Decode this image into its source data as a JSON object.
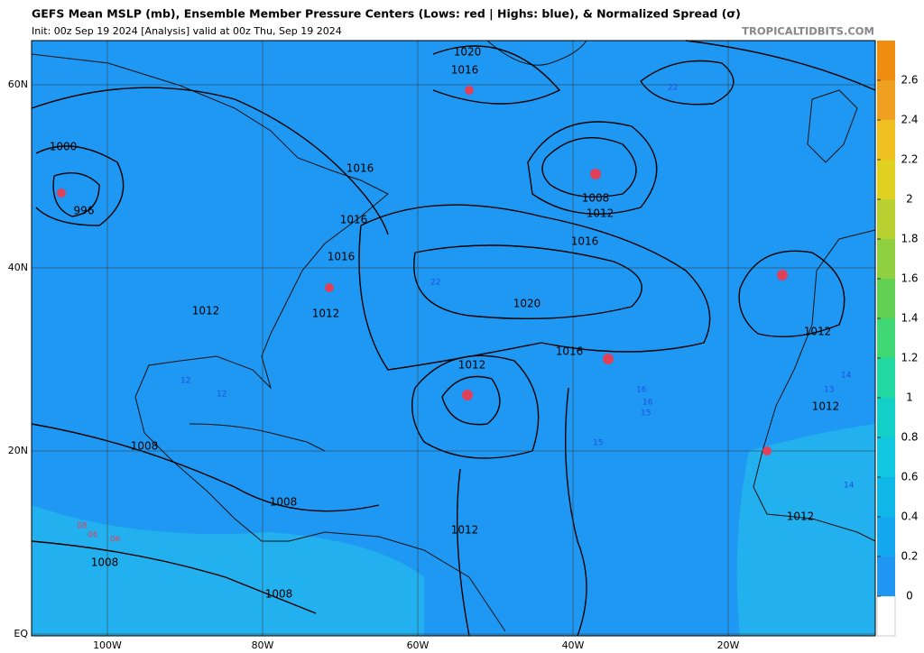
{
  "header": {
    "title": "GEFS Mean MSLP (mb), Ensemble Member Pressure Centers (Lows: red | Highs: blue), & Normalized Spread (σ)",
    "subtitle": "Init: 00z Sep 19 2024   [Analysis]   valid at 00z Thu, Sep 19 2024",
    "source": "TROPICALTIDBITS.COM"
  },
  "map": {
    "lat_ticks": [
      {
        "value": 60,
        "label": "60N"
      },
      {
        "value": 40,
        "label": "40N"
      },
      {
        "value": 20,
        "label": "20N"
      },
      {
        "value": 0,
        "label": "EQ"
      }
    ],
    "lon_ticks": [
      {
        "value": -100,
        "label": "100W"
      },
      {
        "value": -80,
        "label": "80W"
      },
      {
        "value": -60,
        "label": "60W"
      },
      {
        "value": -40,
        "label": "40W"
      },
      {
        "value": -20,
        "label": "20W"
      }
    ],
    "contour_labels": [
      "1020",
      "1016",
      "1000",
      "996",
      "1016",
      "1016",
      "1016",
      "1012",
      "1012",
      "1008",
      "1012",
      "1016",
      "1020",
      "1016",
      "1012",
      "1012",
      "1012",
      "1012",
      "1008",
      "1008",
      "1012",
      "1008",
      "1008"
    ],
    "center_labels": [
      "22",
      "22",
      "16",
      "16",
      "15",
      "15",
      "12",
      "12",
      "14",
      "08",
      "06",
      "06",
      "13",
      "14"
    ]
  },
  "colorbar": {
    "range": [
      0,
      2.8
    ],
    "ticks": [
      0,
      0.2,
      0.4,
      0.6,
      0.8,
      1,
      1.2,
      1.4,
      1.6,
      1.8,
      2,
      2.2,
      2.4,
      2.6
    ],
    "colors": [
      "#1e96f2",
      "#14a8f0",
      "#10b8ea",
      "#10c6e0",
      "#12d0c8",
      "#20d8a0",
      "#40d874",
      "#62d052",
      "#90d040",
      "#b8d030",
      "#e0d020",
      "#f0c020",
      "#f0a020",
      "#f08c10"
    ]
  }
}
